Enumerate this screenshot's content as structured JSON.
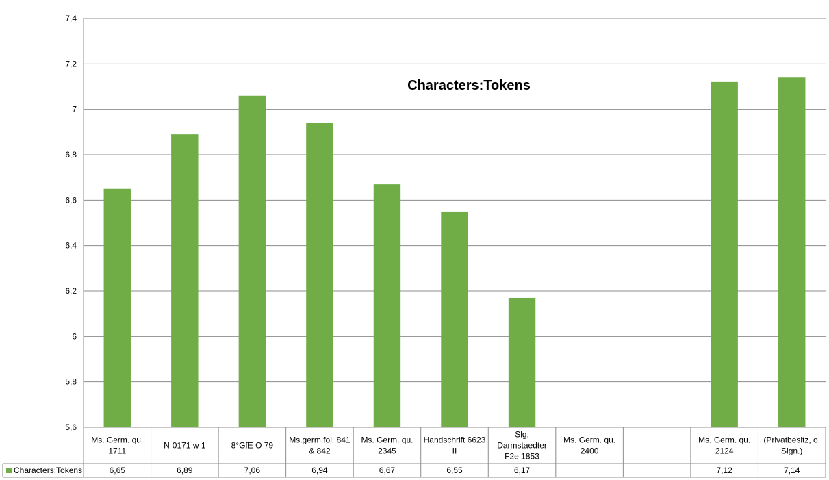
{
  "chart_data": {
    "type": "bar",
    "title": "Characters:Tokens",
    "categories": [
      [
        "Ms. Germ. qu.",
        "1711"
      ],
      [
        "N-0171 w 1"
      ],
      [
        "8°GfE  O  79"
      ],
      [
        "Ms.germ.fol. 841",
        "& 842"
      ],
      [
        "Ms. Germ. qu.",
        "2345"
      ],
      [
        "Handschrift 6623",
        "II"
      ],
      [
        "Slg.",
        "Darmstaedter",
        "F2e 1853"
      ],
      [
        "Ms. Germ. qu.",
        "2400"
      ],
      [],
      [
        "Ms. Germ. qu.",
        "2124"
      ],
      [
        "(Privatbesitz, o.",
        "Sign.)"
      ]
    ],
    "series": [
      {
        "name": "Characters:Tokens",
        "color": "#70ad47",
        "values": [
          6.65,
          6.89,
          7.06,
          6.94,
          6.67,
          6.55,
          6.17,
          null,
          null,
          7.12,
          7.14
        ],
        "labels": [
          "6,65",
          "6,89",
          "7,06",
          "6,94",
          "6,67",
          "6,55",
          "6,17",
          "",
          "",
          "7,12",
          "7,14"
        ]
      }
    ],
    "ylim": [
      5.6,
      7.4
    ],
    "yticks": [
      5.6,
      5.8,
      6,
      6.2,
      6.4,
      6.6,
      6.8,
      7,
      7.2,
      7.4
    ],
    "ytick_labels": [
      "5,6",
      "5,8",
      "6",
      "6,2",
      "6,4",
      "6,6",
      "6,8",
      "7",
      "7,2",
      "7,4"
    ],
    "grid": true,
    "legend": "data-table",
    "xlabel": "",
    "ylabel": ""
  }
}
